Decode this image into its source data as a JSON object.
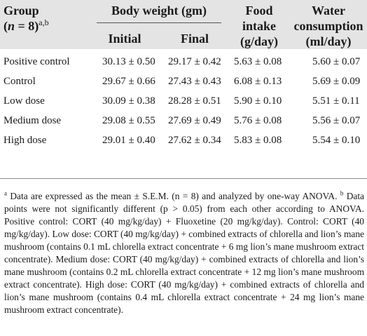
{
  "table": {
    "headers": {
      "group_label": "Group",
      "group_n_prefix": "(",
      "group_n_var": "n",
      "group_n_suffix": " = 8)",
      "group_sup": "a,b",
      "body_weight": "Body weight (gm)",
      "initial": "Initial",
      "final": "Final",
      "food_line1": "Food",
      "food_line2": "intake",
      "food_line3": "(g/day)",
      "water_line1": "Water",
      "water_line2": "consumption",
      "water_line3": "(ml/day)"
    },
    "rows": [
      {
        "group": "Positive control",
        "initial": "30.13 ± 0.50",
        "final": "29.17 ± 0.42",
        "food": "5.63 ± 0.08",
        "water": "5.60 ± 0.07"
      },
      {
        "group": "Control",
        "initial": "29.67 ± 0.66",
        "final": "27.43 ± 0.43",
        "food": "6.08 ± 0.13",
        "water": "5.69 ± 0.09"
      },
      {
        "group": "Low dose",
        "initial": "30.09 ± 0.38",
        "final": "28.28 ± 0.51",
        "food": "5.90 ± 0.10",
        "water": "5.51 ± 0.11"
      },
      {
        "group": "Medium dose",
        "initial": "29.08 ± 0.55",
        "final": "27.69 ± 0.49",
        "food": "5.76 ± 0.08",
        "water": "5.56 ± 0.07"
      },
      {
        "group": "High dose",
        "initial": "29.01 ± 0.40",
        "final": "27.62 ± 0.34",
        "food": "5.83 ± 0.08",
        "water": "5.54 ± 0.10"
      }
    ]
  },
  "footnote": {
    "sup_a": "a",
    "text_a": " Data are expressed as the mean ± S.E.M. (n = 8) and analyzed by one-way ANOVA. ",
    "sup_b": "b",
    "text_b": " Data points were not significantly different (p > 0.05) from each other according to ANOVA. Positive control: CORT (40 mg/kg/day) + Fluoxetine (20 mg/kg/day). Control: CORT (40 mg/kg/day). Low dose: CORT (40 mg/kg/day) + combined extracts of chlorella and lion’s mane mushroom (contains 0.1 mL chlorella extract concentrate + 6 mg lion’s mane mushroom extract concentrate). Medium dose: CORT (40 mg/kg/day) + combined extracts of chlorella and lion’s mane mushroom (contains 0.2 mL chlorella extract concentrate + 12 mg lion’s mane mushroom extract concentrate). High dose: CORT (40 mg/kg/day) + combined extracts of chlorella and lion’s mane mushroom (contains 0.4 mL chlorella extract concentrate + 24 mg lion’s mane mushroom extract concentrate)."
  }
}
